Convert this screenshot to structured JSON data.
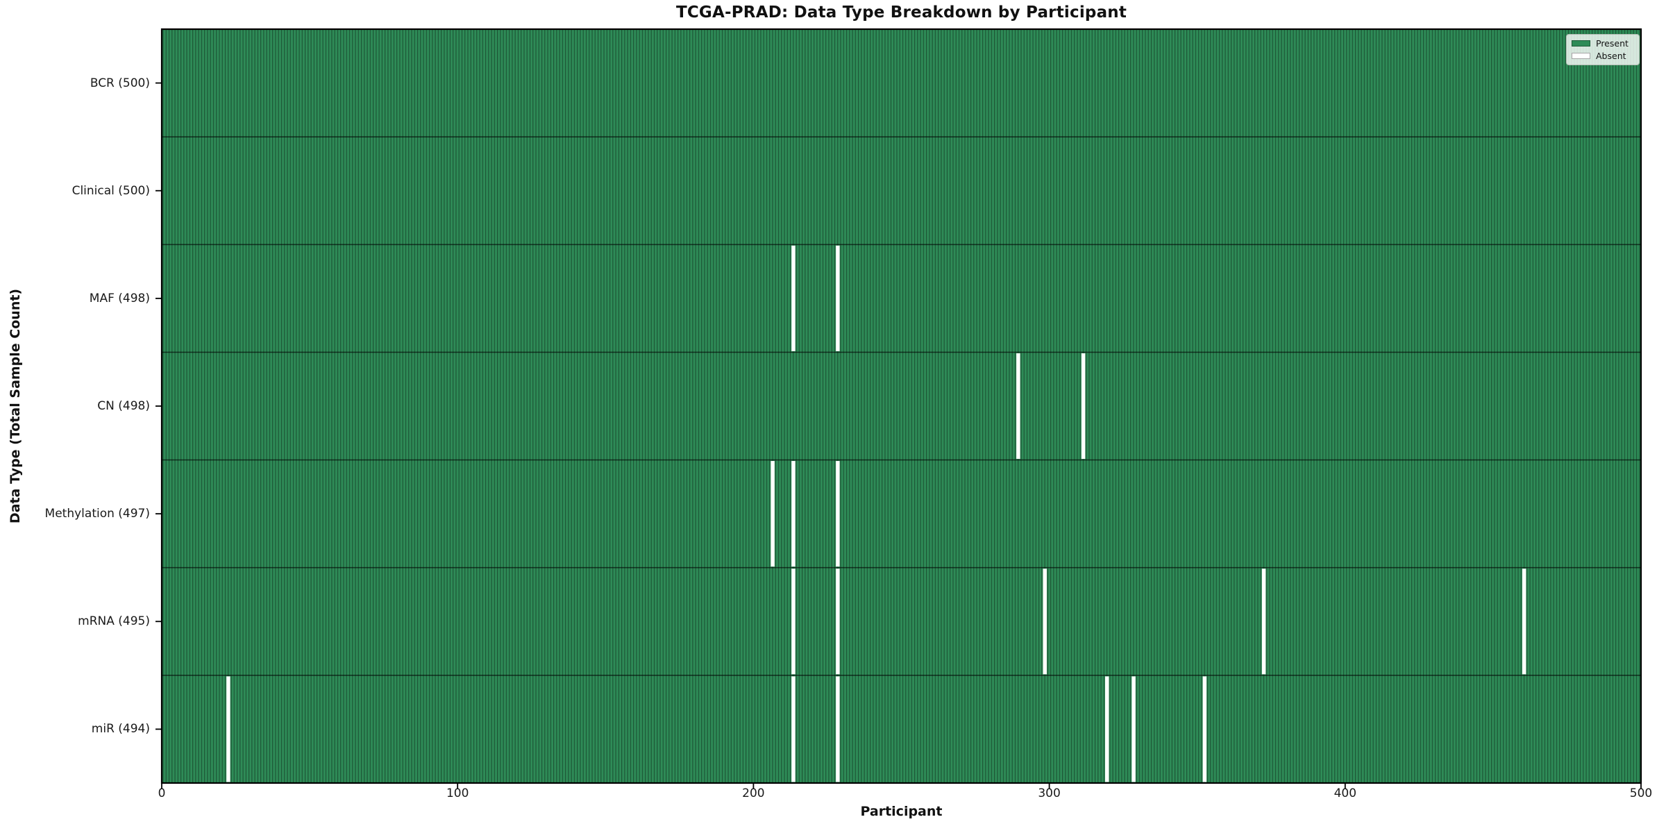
{
  "chart_data": {
    "type": "heatmap",
    "title": "TCGA-PRAD: Data Type Breakdown by Participant",
    "xlabel": "Participant",
    "ylabel": "Data Type (Total Sample Count)",
    "n_participants": 500,
    "x_range": [
      0,
      500
    ],
    "x_ticks": [
      0,
      100,
      200,
      300,
      400,
      500
    ],
    "legend": [
      {
        "label": "Present",
        "color": "#2e8b57"
      },
      {
        "label": "Absent",
        "color": "#ffffff"
      }
    ],
    "legend_position": "upper right",
    "rows": [
      {
        "label": "BCR (500)",
        "total": 500,
        "absent_participants": []
      },
      {
        "label": "Clinical (500)",
        "total": 500,
        "absent_participants": []
      },
      {
        "label": "MAF (498)",
        "total": 498,
        "absent_participants": [
          213,
          228
        ]
      },
      {
        "label": "CN (498)",
        "total": 498,
        "absent_participants": [
          289,
          311
        ]
      },
      {
        "label": "Methylation (497)",
        "total": 497,
        "absent_participants": [
          206,
          213,
          228
        ]
      },
      {
        "label": "mRNA (495)",
        "total": 495,
        "absent_participants": [
          213,
          228,
          298,
          372,
          460
        ]
      },
      {
        "label": "miR (494)",
        "total": 494,
        "absent_participants": [
          22,
          213,
          228,
          319,
          328,
          352
        ]
      }
    ],
    "colors": {
      "present": "#2e8b57",
      "absent": "#ffffff",
      "cell_edge": "rgba(0,0,0,0.38)",
      "row_divider": "rgba(0,0,0,0.6)",
      "spine": "#000000"
    }
  }
}
